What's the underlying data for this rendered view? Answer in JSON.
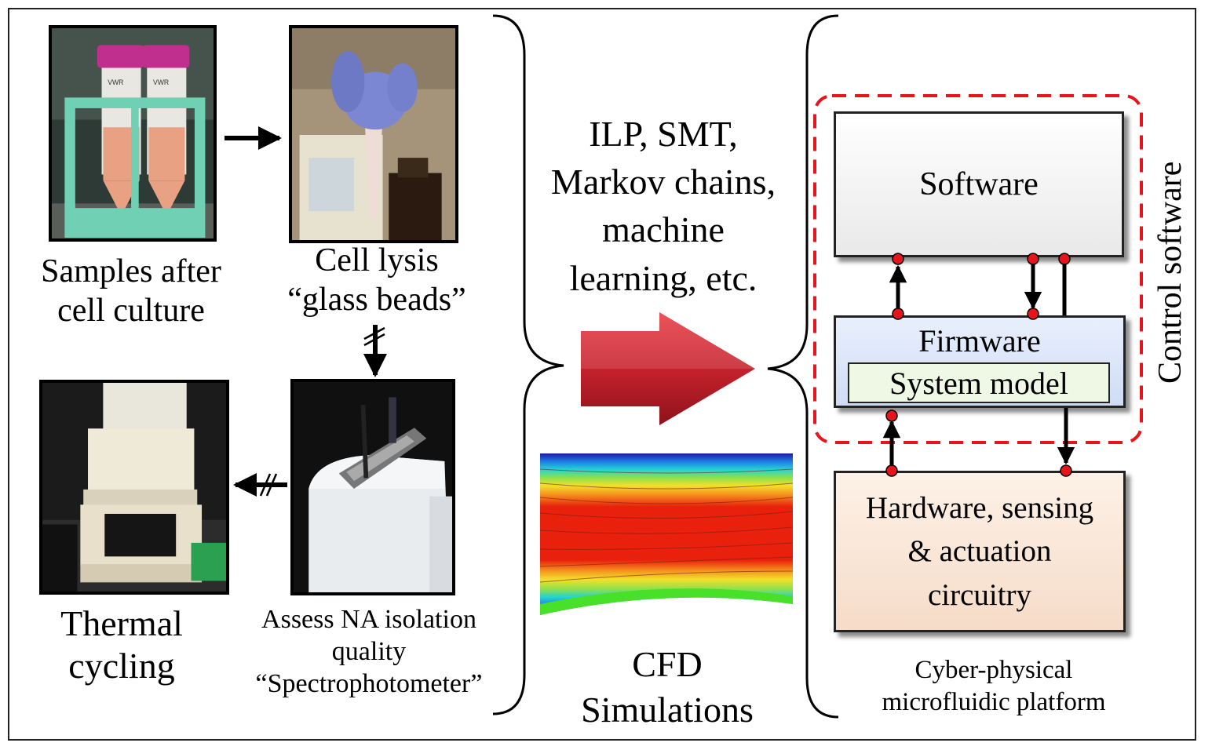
{
  "workflow": {
    "samples_label": [
      "Samples after",
      "cell culture"
    ],
    "lysis_label": [
      "Cell lysis",
      "“glass beads”"
    ],
    "thermal_label": [
      "Thermal",
      "cycling"
    ],
    "assess_label": [
      "Assess NA isolation",
      "quality",
      "“Spectrophotometer”"
    ],
    "tube_brand": "VWR"
  },
  "methods": {
    "lines": [
      "ILP, SMT,",
      "Markov chains,",
      "machine",
      "learning, etc."
    ]
  },
  "cfd": {
    "label": [
      "CFD",
      "Simulations"
    ]
  },
  "platform": {
    "software": "Software",
    "firmware": "Firmware",
    "system_model": "System model",
    "hardware": [
      "Hardware, sensing",
      "& actuation",
      "circuitry"
    ],
    "control_software": "Control software",
    "caption": [
      "Cyber-physical",
      "microfluidic platform"
    ]
  },
  "colors": {
    "dashed_border": "#e8141c",
    "arrow_fill": "#c0202a",
    "software_fill": "#f4f4f4",
    "firmware_fill": "#dde8fa",
    "system_model_fill": "#eef8e4",
    "hardware_fill": "#fbe7d7",
    "node_fill": "#e8141c"
  }
}
